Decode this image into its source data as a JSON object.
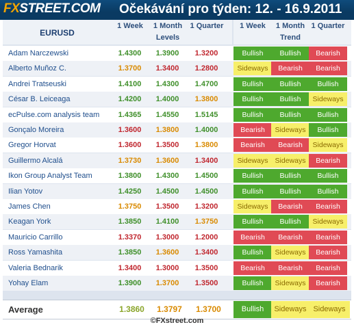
{
  "header": {
    "logo_fx": "FX",
    "logo_street": "STREET",
    "logo_com": ".COM",
    "title": "Očekávání pro týden: 12. - 16.9.2011"
  },
  "table": {
    "symbol": "EURUSD",
    "period_headers": [
      "1 Week",
      "1 Month",
      "1 Quarter"
    ],
    "trend_period_headers": [
      "1 Week",
      "1 Month",
      "1 Quarter"
    ],
    "levels_label": "Levels",
    "trend_label": "Trend",
    "rows": [
      {
        "name": "Adam Narczewski",
        "levels": [
          "1.4300",
          "1.3900",
          "1.3200"
        ],
        "trend": [
          "Bullish",
          "Bullish",
          "Bearish"
        ]
      },
      {
        "name": "Alberto Muñoz C.",
        "levels": [
          "1.3700",
          "1.3400",
          "1.2800"
        ],
        "trend": [
          "Sideways",
          "Bearish",
          "Bearish"
        ]
      },
      {
        "name": "Andrei Tratseuski",
        "levels": [
          "1.4100",
          "1.4300",
          "1.4700"
        ],
        "trend": [
          "Bullish",
          "Bullish",
          "Bullish"
        ]
      },
      {
        "name": "César B. Leiceaga",
        "levels": [
          "1.4200",
          "1.4000",
          "1.3800"
        ],
        "trend": [
          "Bullish",
          "Bullish",
          "Sideways"
        ]
      },
      {
        "name": "ecPulse.com analysis team",
        "levels": [
          "1.4365",
          "1.4550",
          "1.5145"
        ],
        "trend": [
          "Bullish",
          "Bullish",
          "Bullish"
        ]
      },
      {
        "name": "Gonçalo Moreira",
        "levels": [
          "1.3600",
          "1.3800",
          "1.4000"
        ],
        "trend": [
          "Bearish",
          "Sideways",
          "Bullish"
        ]
      },
      {
        "name": "Gregor Horvat",
        "levels": [
          "1.3600",
          "1.3500",
          "1.3800"
        ],
        "trend": [
          "Bearish",
          "Bearish",
          "Sideways"
        ]
      },
      {
        "name": "Guillermo Alcalá",
        "levels": [
          "1.3730",
          "1.3600",
          "1.3400"
        ],
        "trend": [
          "Sideways",
          "Sideways",
          "Bearish"
        ]
      },
      {
        "name": "Ikon Group Analyst Team",
        "levels": [
          "1.3800",
          "1.4300",
          "1.4500"
        ],
        "trend": [
          "Bullish",
          "Bullish",
          "Bullish"
        ]
      },
      {
        "name": "Ilian Yotov",
        "levels": [
          "1.4250",
          "1.4500",
          "1.4500"
        ],
        "trend": [
          "Bullish",
          "Bullish",
          "Bullish"
        ]
      },
      {
        "name": "James Chen",
        "levels": [
          "1.3750",
          "1.3500",
          "1.3200"
        ],
        "trend": [
          "Sideways",
          "Bearish",
          "Bearish"
        ]
      },
      {
        "name": "Keagan York",
        "levels": [
          "1.3850",
          "1.4100",
          "1.3750"
        ],
        "trend": [
          "Bullish",
          "Bullish",
          "Sideways"
        ]
      },
      {
        "name": "Mauricio Carrillo",
        "levels": [
          "1.3370",
          "1.3000",
          "1.2000"
        ],
        "trend": [
          "Bearish",
          "Bearish",
          "Bearish"
        ]
      },
      {
        "name": "Ross Yamashita",
        "levels": [
          "1.3850",
          "1.3600",
          "1.3400"
        ],
        "trend": [
          "Bullish",
          "Sideways",
          "Bearish"
        ]
      },
      {
        "name": "Valeria Bednarik",
        "levels": [
          "1.3400",
          "1.3000",
          "1.3500"
        ],
        "trend": [
          "Bearish",
          "Bearish",
          "Bearish"
        ]
      },
      {
        "name": "Yohay Elam",
        "levels": [
          "1.3900",
          "1.3700",
          "1.3500"
        ],
        "trend": [
          "Bullish",
          "Sideways",
          "Bearish"
        ]
      }
    ],
    "average": {
      "label": "Average",
      "levels": [
        "1.3860",
        "1.3797",
        "1.3700"
      ],
      "trend": [
        "Bullish",
        "Sideways",
        "Sideways"
      ]
    }
  },
  "colors": {
    "bullish": "#4ea92e",
    "bearish": "#e04a55",
    "sideways": "#f7ef6a",
    "level_up": "#3f8f2a",
    "level_mid": "#d98a00",
    "level_down": "#c0262e"
  },
  "footer": "©FXstreet.com"
}
